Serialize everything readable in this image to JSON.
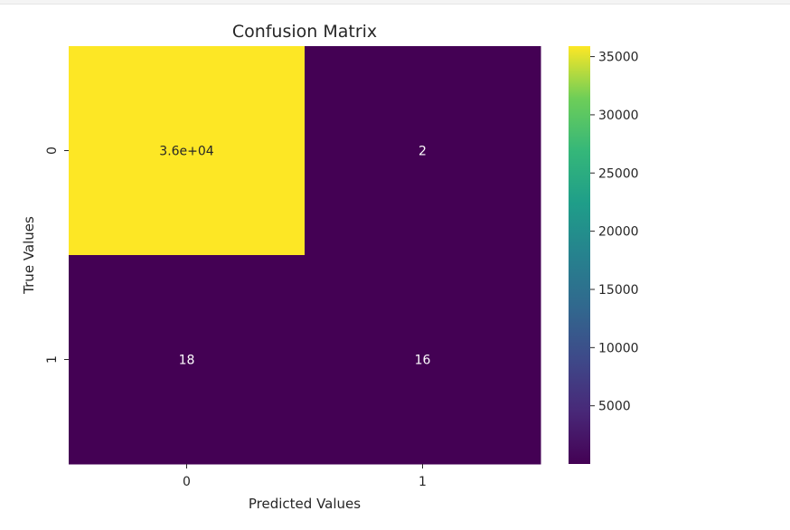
{
  "chart_data": {
    "type": "heatmap",
    "title": "Confusion Matrix",
    "xlabel": "Predicted Values",
    "ylabel": "True Values",
    "x_categories": [
      "0",
      "1"
    ],
    "y_categories": [
      "0",
      "1"
    ],
    "matrix": [
      [
        35900,
        2
      ],
      [
        18,
        16
      ]
    ],
    "annotations": [
      [
        "3.6e+04",
        "2"
      ],
      [
        "18",
        "16"
      ]
    ],
    "colormap": "viridis",
    "colorbar": {
      "range": [
        2,
        35900
      ],
      "ticks": [
        5000,
        10000,
        15000,
        20000,
        25000,
        30000,
        35000
      ],
      "tick_labels": [
        "5000",
        "10000",
        "15000",
        "20000",
        "25000",
        "30000",
        "35000"
      ]
    },
    "colors": {
      "high": "#fde725",
      "low": "#440154",
      "annotation_dark": "#262626",
      "annotation_light": "#ffffff"
    }
  }
}
